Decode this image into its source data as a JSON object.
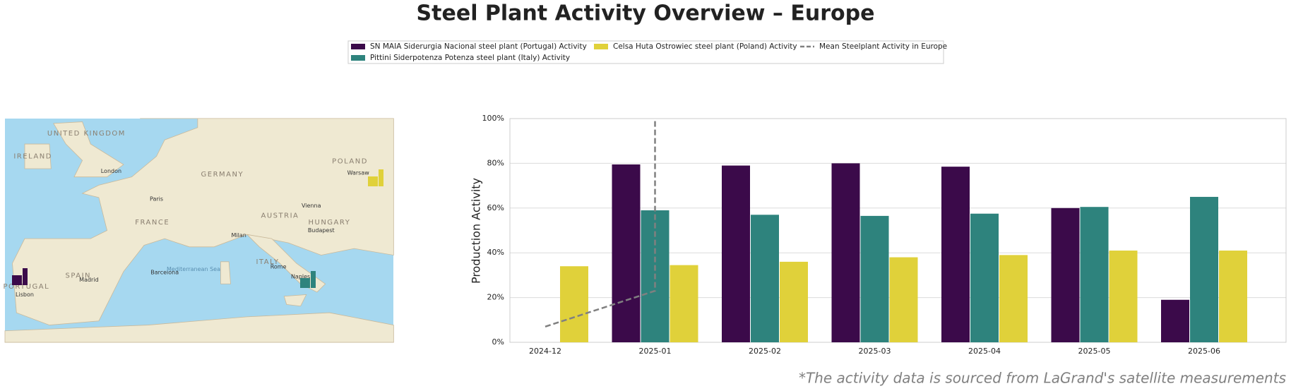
{
  "chart_data": {
    "type": "bar",
    "title": "Steel Plant Activity Overview – Europe",
    "y_label": "Production Activity",
    "footnote": "*The activity data is sourced from LaGrand's satellite measurements",
    "categories": [
      "2024-12",
      "2025-01",
      "2025-02",
      "2025-03",
      "2025-04",
      "2025-05",
      "2025-06"
    ],
    "series": [
      {
        "name": "SN MAIA Siderurgia Nacional steel plant (Portugal) Activity",
        "color": "#3b0a4a",
        "values": [
          null,
          79.5,
          79,
          80,
          78.5,
          60,
          19
        ]
      },
      {
        "name": "Pittini Siderpotenza Potenza steel plant (Italy) Activity",
        "color": "#2e837d",
        "values": [
          null,
          59,
          57,
          56.5,
          57.5,
          60.5,
          65
        ]
      },
      {
        "name": "Celsa Huta Ostrowiec steel plant (Poland) Activity",
        "color": "#e0d13a",
        "values": [
          34,
          34.5,
          36,
          38,
          39,
          41,
          41
        ]
      },
      {
        "name": "Mean Steelplant Activity in Europe",
        "color": "#808080",
        "style": "dashed",
        "x": [
          "2024-12",
          "2025-01",
          "2025-01"
        ],
        "values": [
          7,
          23,
          100
        ]
      }
    ],
    "ylim": [
      0,
      100
    ],
    "yticks": [
      {
        "value": 0,
        "label": "0%"
      },
      {
        "value": 20,
        "label": "20%"
      },
      {
        "value": 40,
        "label": "40%"
      },
      {
        "value": 60,
        "label": "60%"
      },
      {
        "value": 80,
        "label": "80%"
      },
      {
        "value": 100,
        "label": "100%"
      }
    ],
    "grid": true
  },
  "map": {
    "labels": [
      "UNITED KINGDOM",
      "IRELAND",
      "FRANCE",
      "SPAIN",
      "PORTUGAL",
      "GERMANY",
      "POLAND",
      "AUSTRIA",
      "HUNGARY",
      "ITALY",
      "London",
      "Paris",
      "Madrid",
      "Lisbon",
      "Barcelona",
      "Milan",
      "Rome",
      "Naples",
      "Vienna",
      "Budapest",
      "Warsaw",
      "Mediterranean Sea"
    ]
  }
}
